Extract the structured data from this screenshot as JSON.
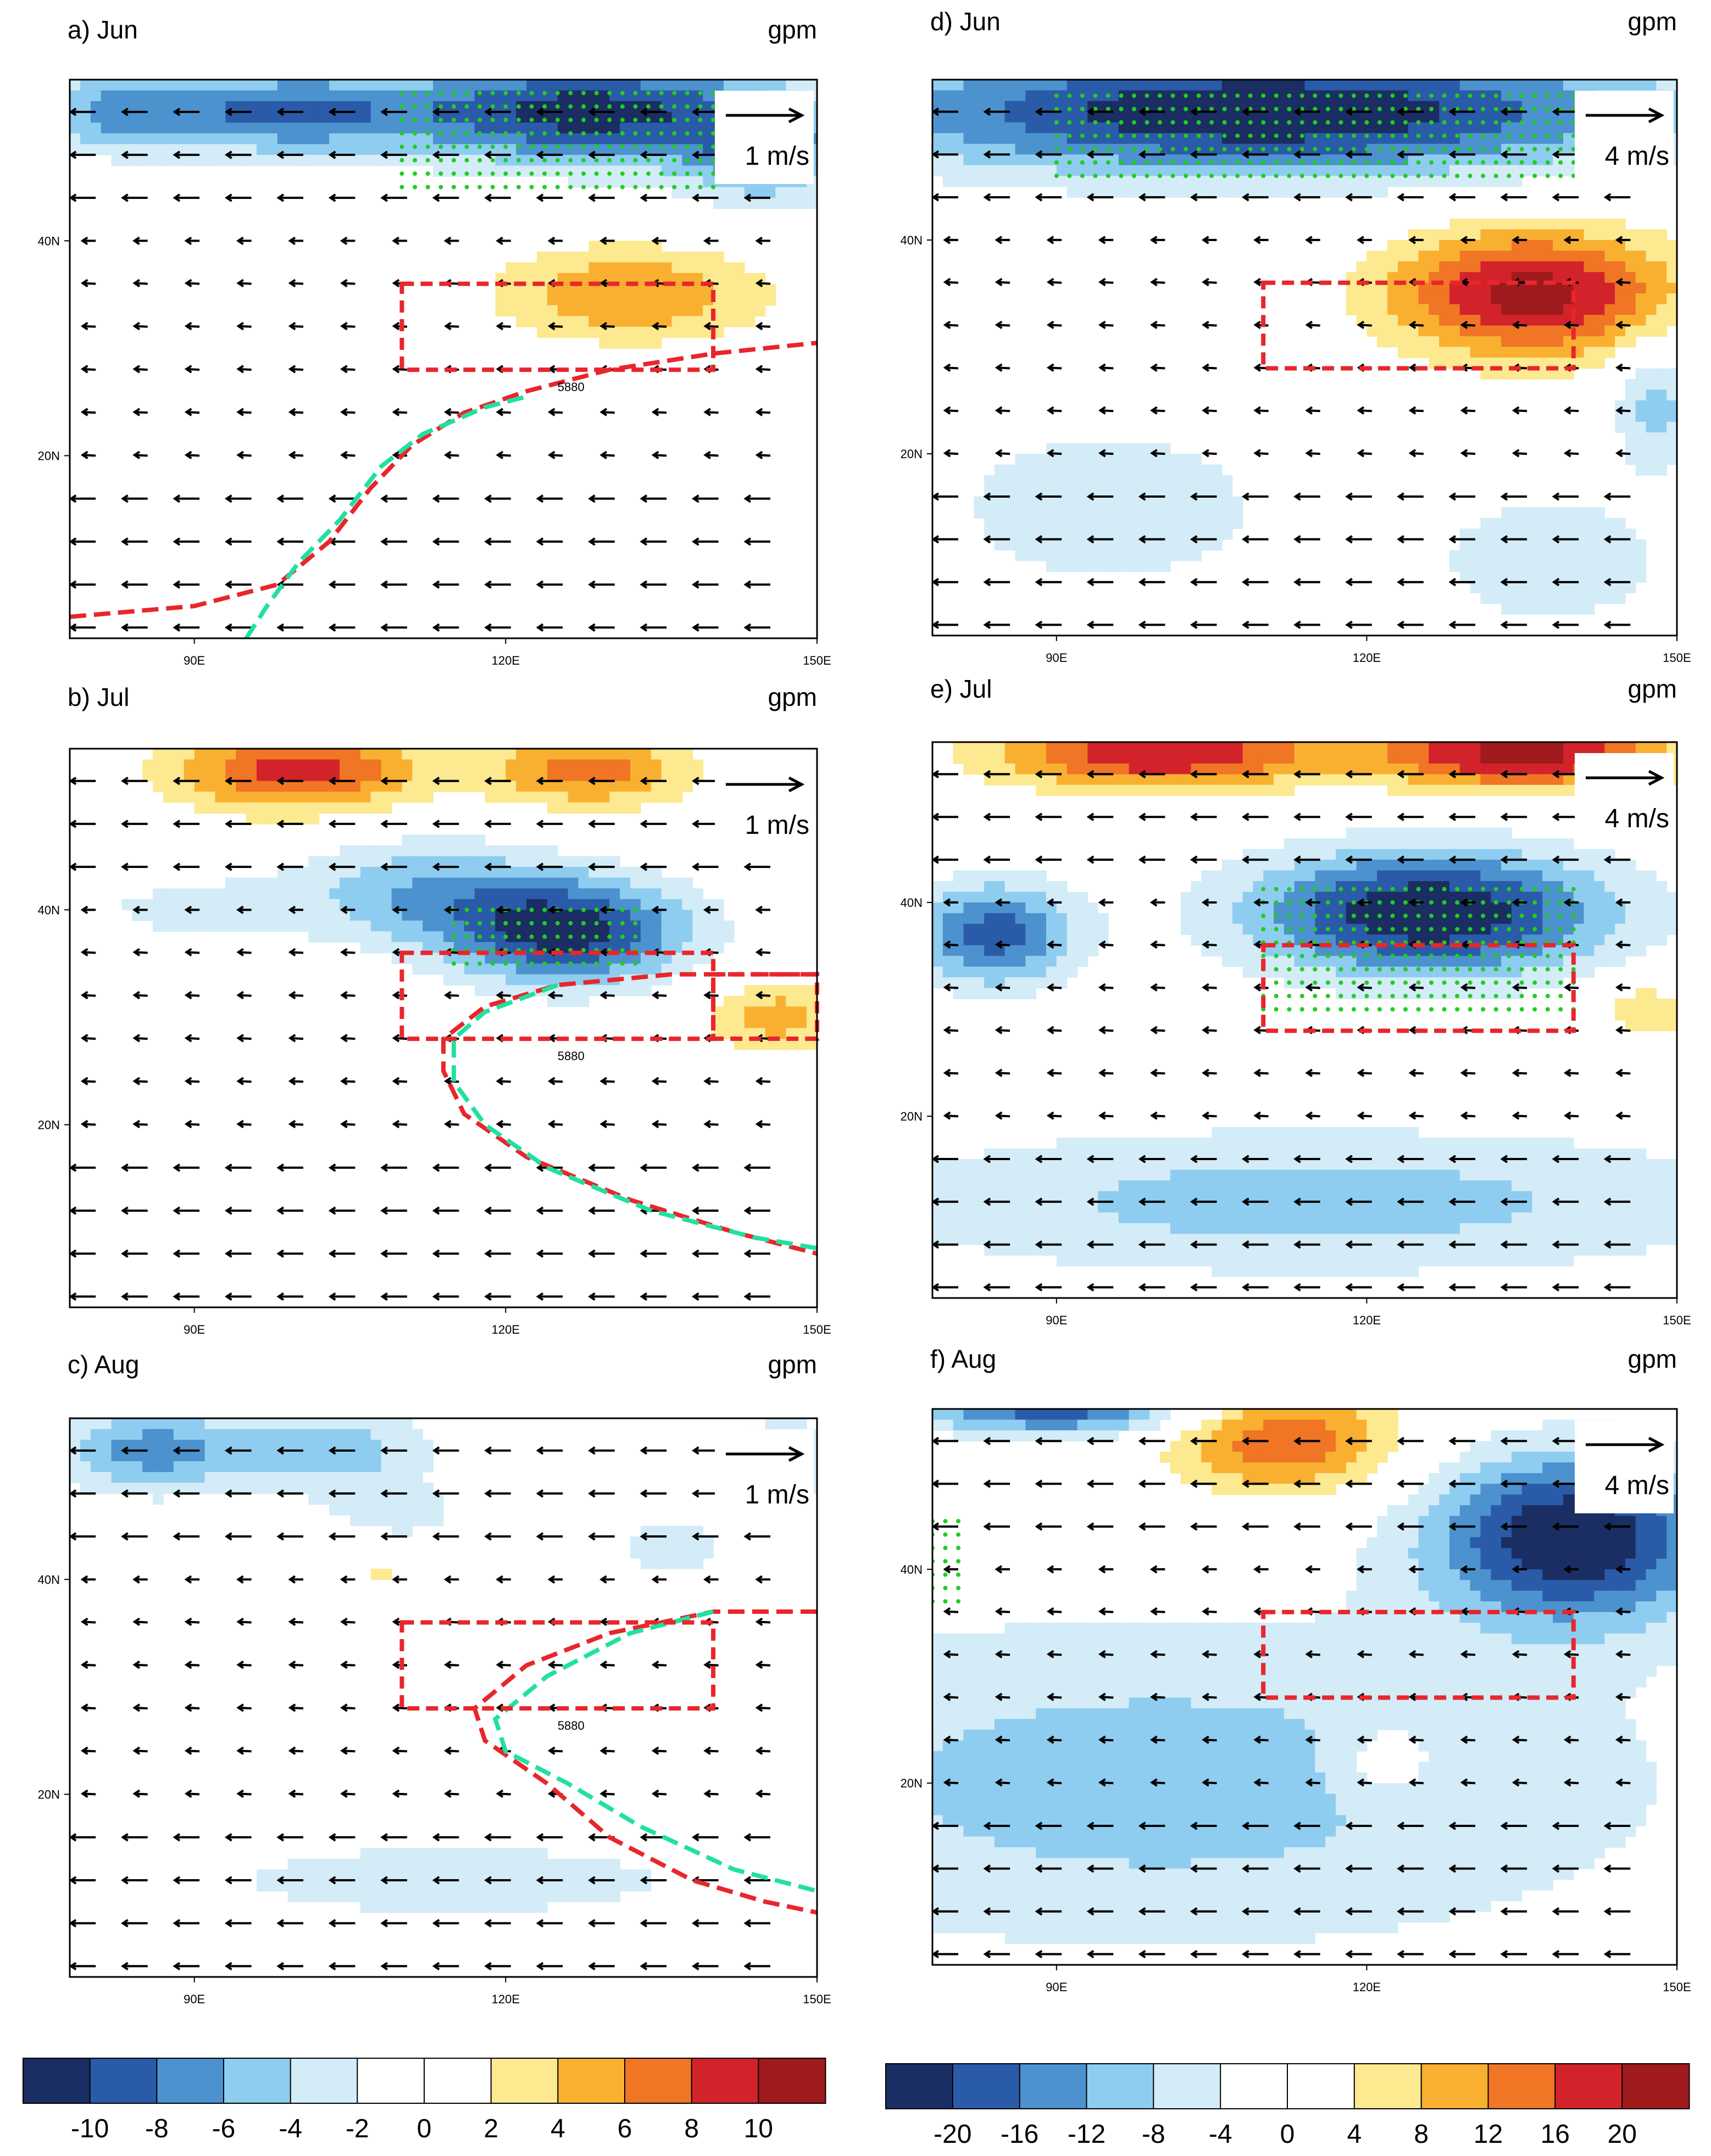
{
  "palettes": {
    "left": [
      "#1a2e63",
      "#2a5ba8",
      "#4c92cf",
      "#8fcdf0",
      "#d3ecf8",
      "#ffffff",
      "#ffffff",
      "#fde98f",
      "#f9b031",
      "#f07525",
      "#d3232a",
      "#9e1a1d"
    ],
    "right": [
      "#1a2e63",
      "#2a5ba8",
      "#4c92cf",
      "#8fcdf0",
      "#d3ecf8",
      "#ffffff",
      "#ffffff",
      "#fde98f",
      "#f9b031",
      "#f07525",
      "#d3232a",
      "#9e1a1d"
    ]
  },
  "colors": {
    "ridge_red": "#e8262c",
    "ridge_green": "#21e0a0",
    "box_red": "#e8262c",
    "stipple": "#22cc22"
  },
  "colorbars": [
    {
      "id": "left",
      "ticks": [
        "-10",
        "-8",
        "-6",
        "-4",
        "-2",
        "0",
        "2",
        "4",
        "6",
        "8",
        "10"
      ]
    },
    {
      "id": "right",
      "ticks": [
        "-20",
        "-16",
        "-12",
        "-8",
        "-4",
        "0",
        "4",
        "8",
        "12",
        "16",
        "20"
      ]
    }
  ],
  "chart_data": [
    {
      "id": "a",
      "type": "heatmap",
      "title": "a) Jun",
      "units": "gpm",
      "ref_vector": "1 m/s",
      "x_ticks": [
        "90E",
        "120E",
        "150E"
      ],
      "y_ticks": [
        "40N",
        "20N"
      ],
      "lon_range": [
        78,
        150
      ],
      "lat_range": [
        3,
        55
      ],
      "box": {
        "lon": [
          110,
          140
        ],
        "lat": [
          28,
          36
        ]
      },
      "contour_label": "5880",
      "ridge_red": [
        [
          78,
          5
        ],
        [
          90,
          6
        ],
        [
          98,
          8
        ],
        [
          103,
          12
        ],
        [
          107,
          17
        ],
        [
          111,
          21
        ],
        [
          116,
          24
        ],
        [
          122,
          26
        ],
        [
          130,
          28
        ],
        [
          140,
          29.5
        ],
        [
          150,
          30.5
        ]
      ],
      "ridge_green": [
        [
          95,
          3
        ],
        [
          97,
          6
        ],
        [
          100,
          10
        ],
        [
          104,
          14
        ],
        [
          108,
          19
        ],
        [
          112,
          22
        ],
        [
          118,
          24.5
        ],
        [
          122,
          25.5
        ]
      ],
      "anomalies": [
        {
          "lon": 98,
          "lat": 52,
          "amp": -8,
          "rlon": 14,
          "rlat": 4
        },
        {
          "lon": 128,
          "lat": 52,
          "amp": -11,
          "rlon": 18,
          "rlat": 5
        },
        {
          "lon": 145,
          "lat": 48,
          "amp": -6,
          "rlon": 8,
          "rlat": 5
        },
        {
          "lon": 82,
          "lat": 52,
          "amp": -5,
          "rlon": 8,
          "rlat": 4
        },
        {
          "lon": 132,
          "lat": 35,
          "amp": 6,
          "rlon": 13,
          "rlat": 4.5
        },
        {
          "lon": 115,
          "lat": 20,
          "amp": -1,
          "rlon": 20,
          "rlat": 8
        }
      ],
      "stipple": {
        "lon": [
          110,
          140
        ],
        "lat": [
          45,
          54
        ]
      }
    },
    {
      "id": "b",
      "type": "heatmap",
      "title": "b) Jul",
      "units": "gpm",
      "ref_vector": "1 m/s",
      "x_ticks": [
        "90E",
        "120E",
        "150E"
      ],
      "y_ticks": [
        "40N",
        "20N"
      ],
      "lon_range": [
        78,
        150
      ],
      "lat_range": [
        3,
        55
      ],
      "box": {
        "lon": [
          110,
          140
        ],
        "lat": [
          28,
          36
        ]
      },
      "box2": {
        "lon": [
          140,
          150
        ],
        "lat": [
          28,
          34
        ]
      },
      "contour_label": "5880",
      "ridge_red": [
        [
          150,
          34
        ],
        [
          136,
          34
        ],
        [
          125,
          33
        ],
        [
          118,
          31
        ],
        [
          114,
          28
        ],
        [
          114,
          25
        ],
        [
          116,
          21
        ],
        [
          122,
          17
        ],
        [
          132,
          13
        ],
        [
          142,
          10
        ],
        [
          150,
          8
        ]
      ],
      "ridge_green": [
        [
          125,
          33
        ],
        [
          118,
          30.5
        ],
        [
          115,
          28
        ],
        [
          115,
          24
        ],
        [
          118,
          20
        ],
        [
          124,
          16
        ],
        [
          134,
          12
        ],
        [
          144,
          9.5
        ],
        [
          150,
          8.5
        ]
      ],
      "anomalies": [
        {
          "lon": 100,
          "lat": 53,
          "amp": 9,
          "rlon": 12,
          "rlat": 4
        },
        {
          "lon": 128,
          "lat": 53,
          "amp": 7,
          "rlon": 10,
          "rlat": 3.5
        },
        {
          "lon": 126,
          "lat": 38,
          "amp": -11,
          "rlon": 12,
          "rlat": 5
        },
        {
          "lon": 112,
          "lat": 42,
          "amp": -5,
          "rlon": 12,
          "rlat": 5
        },
        {
          "lon": 146,
          "lat": 30,
          "amp": 5,
          "rlon": 7,
          "rlat": 3.5
        },
        {
          "lon": 90,
          "lat": 40,
          "amp": -2.5,
          "rlon": 14,
          "rlat": 4
        }
      ],
      "stipple": {
        "lon": [
          115,
          133
        ],
        "lat": [
          35,
          40
        ]
      }
    },
    {
      "id": "c",
      "type": "heatmap",
      "title": "c) Aug",
      "units": "gpm",
      "ref_vector": "1 m/s",
      "x_ticks": [
        "90E",
        "120E",
        "150E"
      ],
      "y_ticks": [
        "40N",
        "20N"
      ],
      "lon_range": [
        78,
        150
      ],
      "lat_range": [
        3,
        55
      ],
      "box": {
        "lon": [
          110,
          140
        ],
        "lat": [
          28,
          36
        ]
      },
      "contour_label": "5880",
      "ridge_red": [
        [
          150,
          37
        ],
        [
          140,
          37
        ],
        [
          130,
          35
        ],
        [
          122,
          32
        ],
        [
          117,
          28
        ],
        [
          118,
          25
        ],
        [
          124,
          21
        ],
        [
          130,
          16
        ],
        [
          138,
          12
        ],
        [
          145,
          10
        ],
        [
          150,
          9
        ]
      ],
      "ridge_green": [
        [
          140,
          37
        ],
        [
          132,
          35
        ],
        [
          124,
          31
        ],
        [
          119,
          27
        ],
        [
          120,
          24
        ],
        [
          126,
          21
        ],
        [
          133,
          17
        ],
        [
          142,
          13
        ],
        [
          150,
          11
        ]
      ],
      "anomalies": [
        {
          "lon": 86,
          "lat": 52,
          "amp": -7,
          "rlon": 10,
          "rlat": 4
        },
        {
          "lon": 104,
          "lat": 52,
          "amp": -5,
          "rlon": 9,
          "rlat": 4
        },
        {
          "lon": 147,
          "lat": 51,
          "amp": -5,
          "rlon": 5,
          "rlat": 4
        },
        {
          "lon": 110,
          "lat": 46,
          "amp": -2.5,
          "rlon": 8,
          "rlat": 3
        },
        {
          "lon": 136,
          "lat": 43,
          "amp": -2.5,
          "rlon": 8,
          "rlat": 5
        },
        {
          "lon": 108,
          "lat": 41,
          "amp": 3,
          "rlon": 2,
          "rlat": 1
        },
        {
          "lon": 115,
          "lat": 12,
          "amp": -2.5,
          "rlon": 40,
          "rlat": 6
        }
      ],
      "stipple": null
    },
    {
      "id": "d",
      "type": "heatmap",
      "title": "d) Jun",
      "units": "gpm",
      "ref_vector": "4 m/s",
      "x_ticks": [
        "90E",
        "120E",
        "150E"
      ],
      "y_ticks": [
        "40N",
        "20N"
      ],
      "lon_range": [
        78,
        150
      ],
      "lat_range": [
        3,
        55
      ],
      "box": {
        "lon": [
          110,
          140
        ],
        "lat": [
          28,
          36
        ]
      },
      "contour_label": "",
      "ridge_red": [],
      "ridge_green": [],
      "anomalies": [
        {
          "lon": 110,
          "lat": 52,
          "amp": -24,
          "rlon": 40,
          "rlat": 6
        },
        {
          "lon": 136,
          "lat": 35,
          "amp": 22,
          "rlon": 14,
          "rlat": 6
        },
        {
          "lon": 148,
          "lat": 25,
          "amp": -10,
          "rlon": 4,
          "rlat": 6
        },
        {
          "lon": 95,
          "lat": 15,
          "amp": -6,
          "rlon": 20,
          "rlat": 10
        },
        {
          "lon": 138,
          "lat": 10,
          "amp": -6,
          "rlon": 14,
          "rlat": 8
        }
      ],
      "stipple": {
        "lon": [
          90,
          140
        ],
        "lat": [
          46,
          54
        ]
      }
    },
    {
      "id": "e",
      "type": "heatmap",
      "title": "e) Jul",
      "units": "gpm",
      "ref_vector": "4 m/s",
      "x_ticks": [
        "90E",
        "120E",
        "150E"
      ],
      "y_ticks": [
        "40N",
        "20N"
      ],
      "lon_range": [
        78,
        150
      ],
      "lat_range": [
        3,
        55
      ],
      "box": {
        "lon": [
          110,
          140
        ],
        "lat": [
          28,
          36
        ]
      },
      "contour_label": "",
      "ridge_red": [],
      "ridge_green": [],
      "anomalies": [
        {
          "lon": 100,
          "lat": 54,
          "amp": 20,
          "rlon": 16,
          "rlat": 3.5
        },
        {
          "lon": 135,
          "lat": 54,
          "amp": 22,
          "rlon": 14,
          "rlat": 3.5
        },
        {
          "lon": 126,
          "lat": 39,
          "amp": -24,
          "rlon": 18,
          "rlat": 6
        },
        {
          "lon": 84,
          "lat": 37,
          "amp": -18,
          "rlon": 8,
          "rlat": 5
        },
        {
          "lon": 147,
          "lat": 30,
          "amp": 7,
          "rlon": 5,
          "rlat": 3
        },
        {
          "lon": 115,
          "lat": 12,
          "amp": -10,
          "rlon": 45,
          "rlat": 7
        }
      ],
      "stipple": {
        "lon": [
          110,
          140
        ],
        "lat": [
          30,
          42
        ]
      }
    },
    {
      "id": "f",
      "type": "heatmap",
      "title": "f) Aug",
      "units": "gpm",
      "ref_vector": "4 m/s",
      "x_ticks": [
        "90E",
        "120E",
        "150E"
      ],
      "y_ticks": [
        "40N",
        "20N"
      ],
      "lon_range": [
        78,
        150
      ],
      "lat_range": [
        3,
        55
      ],
      "box": {
        "lon": [
          110,
          140
        ],
        "lat": [
          28,
          36
        ]
      },
      "contour_label": "",
      "ridge_red": [],
      "ridge_green": [],
      "anomalies": [
        {
          "lon": 112,
          "lat": 52,
          "amp": 16,
          "rlon": 11,
          "rlat": 5
        },
        {
          "lon": 90,
          "lat": 55,
          "amp": -18,
          "rlon": 14,
          "rlat": 2.5
        },
        {
          "lon": 140,
          "lat": 43,
          "amp": -24,
          "rlon": 14,
          "rlat": 8
        },
        {
          "lon": 100,
          "lat": 20,
          "amp": -10,
          "rlon": 50,
          "rlat": 16
        },
        {
          "lon": 122,
          "lat": 22,
          "amp": 6,
          "rlon": 5,
          "rlat": 4
        }
      ],
      "stipple": {
        "lon": [
          78,
          81
        ],
        "lat": [
          37,
          45
        ]
      }
    }
  ]
}
